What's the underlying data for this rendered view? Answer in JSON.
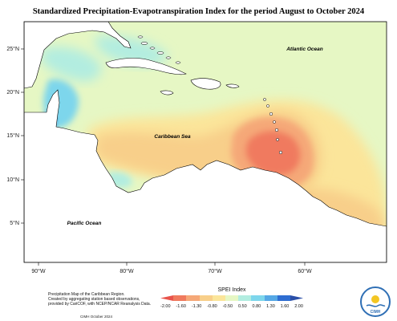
{
  "title": "Standardized Precipitation-Evapotranspiration Index for the period August to October 2024",
  "map": {
    "lat_labels": [
      "25°N",
      "20°N",
      "15°N",
      "10°N",
      "5°N"
    ],
    "lon_labels": [
      "90°W",
      "80°W",
      "70°W",
      "60°W"
    ],
    "place_labels": {
      "atlantic": "Atlantic Ocean",
      "caribbean": "Caribbean Sea",
      "pacific": "Pacific Ocean"
    }
  },
  "legend": {
    "title": "SPEI Index",
    "ticks": [
      "-2.00",
      "-1.60",
      "-1.30",
      "-0.80",
      "-0.50",
      "0.50",
      "0.80",
      "1.30",
      "1.60",
      "2.00"
    ],
    "colors": [
      "#e8534b",
      "#f07a5e",
      "#f5a878",
      "#f8cf8a",
      "#fbe59a",
      "#e6f7c4",
      "#b2ede0",
      "#7dd6ec",
      "#55a8e5",
      "#2e6dd1",
      "#2b4fa8"
    ]
  },
  "footer": {
    "line1": "Precipitation Map of the Caribbean Region.",
    "line2": "Created by aggregating station based observations,",
    "line3": "provided by CariCOF, with NCEP/NCAR Reanalysis Data.",
    "copyright": "CIMH October 2024"
  },
  "logo": {
    "text": "CIMH"
  }
}
